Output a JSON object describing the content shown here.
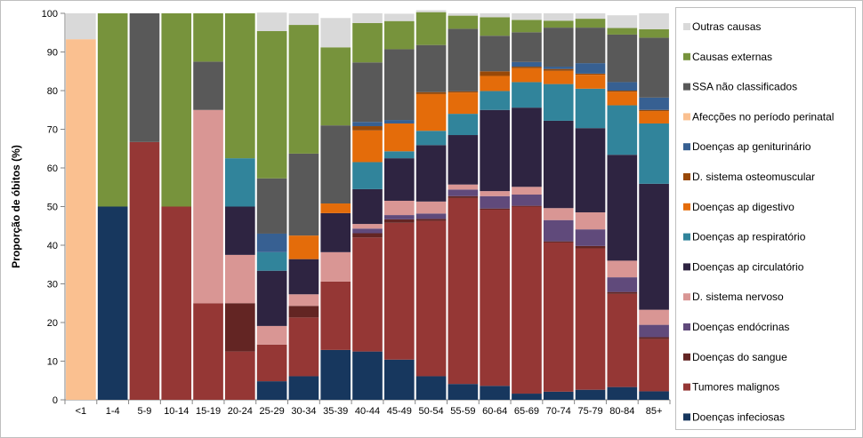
{
  "chart_data": {
    "type": "bar",
    "stacked": true,
    "title": "",
    "xlabel": "",
    "ylabel": "Proporção de óbitos (%)",
    "ylim": [
      0,
      100
    ],
    "yticks": [
      0,
      10,
      20,
      30,
      40,
      50,
      60,
      70,
      80,
      90,
      100
    ],
    "grid": false,
    "legend_position": "right",
    "categories": [
      "<1",
      "1-4",
      "5-9",
      "10-14",
      "15-19",
      "20-24",
      "25-29",
      "30-34",
      "35-39",
      "40-44",
      "45-49",
      "50-54",
      "55-59",
      "60-64",
      "65-69",
      "70-74",
      "75-79",
      "80-84",
      "85+"
    ],
    "series": [
      {
        "name": "Doenças infeciosas",
        "color": "#17375e",
        "values": [
          0,
          50,
          0,
          0,
          0,
          0,
          4.8,
          6.1,
          12.9,
          12.5,
          10.4,
          6.1,
          4.1,
          3.6,
          1.6,
          2.1,
          2.6,
          3.3,
          2.2
        ]
      },
      {
        "name": "Tumores malignos",
        "color": "#953735",
        "values": [
          0,
          0,
          66.7,
          50,
          25,
          12.5,
          9.5,
          15.2,
          17.7,
          29.5,
          35.4,
          40.2,
          48.1,
          45.6,
          48.4,
          38.6,
          36.6,
          24.1,
          13.5
        ]
      },
      {
        "name": "Doenças do sangue",
        "color": "#632523",
        "values": [
          0,
          0,
          0,
          0,
          0,
          12.5,
          0,
          3.0,
          0,
          1.1,
          0.9,
          0.5,
          0.5,
          0.3,
          0.2,
          0.3,
          0.6,
          0.5,
          0.5
        ]
      },
      {
        "name": "Doenças endócrinas",
        "color": "#604a7b",
        "values": [
          0,
          0,
          0,
          0,
          0,
          0,
          0,
          0,
          0,
          1.2,
          1.1,
          1.4,
          1.7,
          3.2,
          2.9,
          5.5,
          4.3,
          3.8,
          3.2
        ]
      },
      {
        "name": "D. sistema nervoso",
        "color": "#d99694",
        "values": [
          0,
          0,
          0,
          0,
          50,
          12.5,
          4.8,
          3.0,
          7.6,
          1.2,
          3.7,
          3.1,
          1.3,
          1.3,
          2.0,
          3.1,
          4.4,
          4.3,
          3.9
        ]
      },
      {
        "name": "Doenças ap circulatório",
        "color": "#2e2441",
        "values": [
          0,
          0,
          0,
          0,
          0,
          12.5,
          14.3,
          9.1,
          10.1,
          9.0,
          11.0,
          14.6,
          12.8,
          21.0,
          20.5,
          22.6,
          21.8,
          27.4,
          32.6
        ]
      },
      {
        "name": "Doenças ap respiratório",
        "color": "#31849b",
        "values": [
          0,
          0,
          0,
          0,
          0,
          12.5,
          4.8,
          0,
          0,
          7.0,
          1.8,
          3.7,
          5.5,
          4.9,
          6.6,
          9.5,
          10.2,
          12.8,
          15.6
        ]
      },
      {
        "name": "Doenças ap digestivo",
        "color": "#e46c0a",
        "values": [
          0,
          0,
          0,
          0,
          0,
          0,
          0,
          6.1,
          2.5,
          8.2,
          7.2,
          9.5,
          5.5,
          3.9,
          3.6,
          3.4,
          3.6,
          3.5,
          3.2
        ]
      },
      {
        "name": "D. sistema osteomuscular",
        "color": "#984807",
        "values": [
          0,
          0,
          0,
          0,
          0,
          0,
          0,
          0,
          0,
          1.1,
          0,
          0.5,
          0.3,
          1.2,
          0.4,
          0.5,
          0.3,
          0.3,
          0.3
        ]
      },
      {
        "name": "Doenças ap geniturinário",
        "color": "#376092",
        "values": [
          0,
          0,
          0,
          0,
          0,
          0,
          4.8,
          0,
          0,
          1.1,
          0.9,
          0,
          0,
          0,
          1.2,
          0.6,
          2.7,
          2.2,
          3.2
        ]
      },
      {
        "name": "Afecções no período perinatal",
        "color": "#fac090",
        "values": [
          93.3,
          0,
          0,
          0,
          0,
          0,
          0,
          0,
          0,
          0,
          0,
          0,
          0,
          0,
          0,
          0,
          0,
          0,
          0
        ]
      },
      {
        "name": "SSA não classificados",
        "color": "#595959",
        "values": [
          0,
          0,
          33.3,
          0,
          12.5,
          0,
          14.3,
          21.2,
          20.2,
          15.4,
          18.3,
          12.2,
          16.2,
          9.2,
          7.7,
          10.1,
          9.2,
          12.3,
          15.5
        ]
      },
      {
        "name": "Causas externas",
        "color": "#77933c",
        "values": [
          0,
          50,
          0,
          50,
          12.5,
          37.5,
          38.1,
          33.3,
          20.2,
          10.2,
          7.3,
          8.5,
          3.4,
          4.8,
          3.2,
          1.8,
          2.3,
          1.7,
          2.2
        ]
      },
      {
        "name": "Outras causas",
        "color": "#d9d9d9",
        "values": [
          6.7,
          0,
          0,
          0,
          0,
          0,
          4.8,
          3.0,
          7.6,
          2.5,
          1.9,
          0.5,
          0.6,
          1.0,
          1.7,
          1.9,
          1.4,
          3.3,
          4.1
        ]
      }
    ]
  }
}
